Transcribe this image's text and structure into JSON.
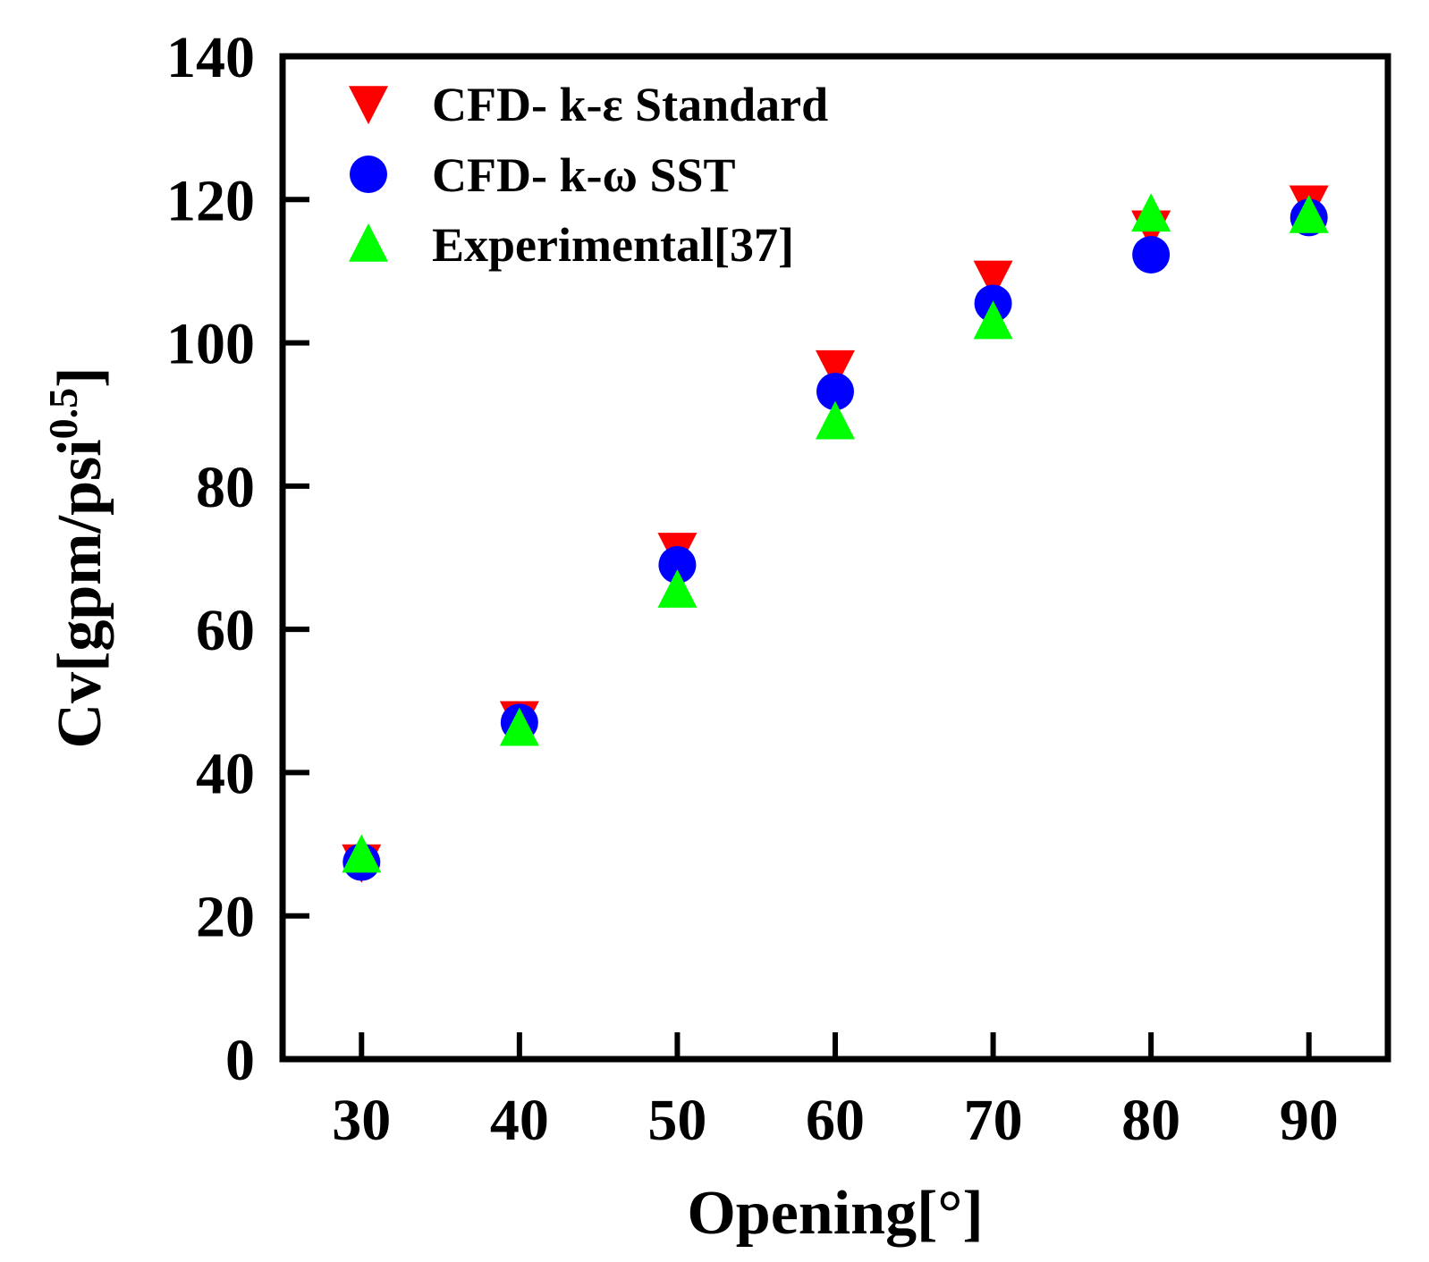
{
  "chart_data": {
    "type": "scatter",
    "title": "",
    "xlabel": "Opening[°]",
    "ylabel": {
      "main": "Cv[gpm/psi",
      "superscript": "0.5",
      "close": "]"
    },
    "x": [
      30,
      40,
      50,
      60,
      70,
      80,
      90
    ],
    "xticks": [
      "30",
      "40",
      "50",
      "60",
      "70",
      "80",
      "90"
    ],
    "yticks": [
      "0",
      "20",
      "40",
      "60",
      "80",
      "100",
      "120",
      "140"
    ],
    "xlim": [
      25,
      95
    ],
    "ylim": [
      0,
      140
    ],
    "grid": false,
    "legend_position": "top-left",
    "series": [
      {
        "name": "CFD- k-ε Standard",
        "marker": "triangle-down",
        "color": "#ff0000",
        "values": [
          27.5,
          47.5,
          71.0,
          96.5,
          109.0,
          116.0,
          119.5
        ]
      },
      {
        "name": "CFD- k-ω SST",
        "marker": "circle",
        "color": "#0000ff",
        "values": [
          27.5,
          47.0,
          69.0,
          93.2,
          105.5,
          112.3,
          117.5
        ]
      },
      {
        "name": "Experimental[37]",
        "marker": "triangle-up",
        "color": "#00ff00",
        "values": [
          28.5,
          46.2,
          65.5,
          89.0,
          103.0,
          118.0,
          117.8
        ]
      }
    ]
  }
}
